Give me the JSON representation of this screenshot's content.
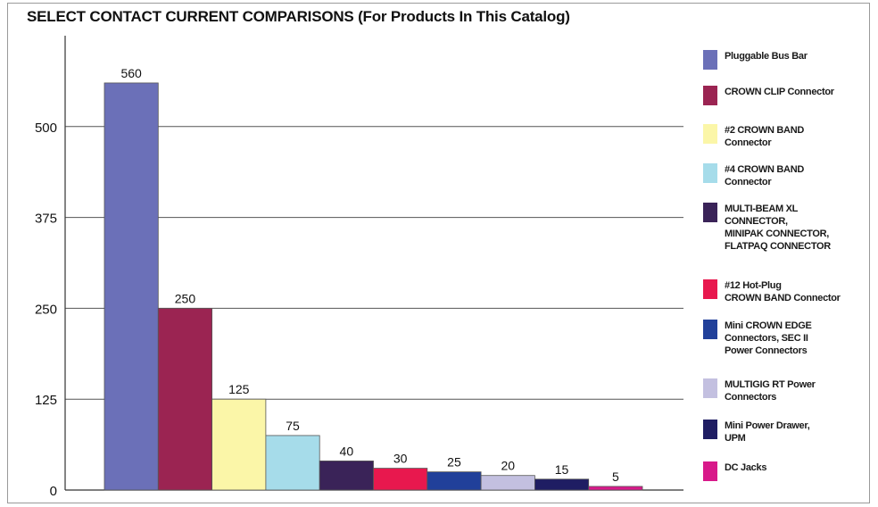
{
  "chart_data": {
    "type": "bar",
    "title": "SELECT CONTACT CURRENT COMPARISONS (For Products In This Catalog)",
    "ylim": [
      0,
      625
    ],
    "yticks": [
      0,
      125,
      250,
      375,
      500
    ],
    "grid": "horizontal",
    "legend_placement": "right",
    "series": [
      {
        "name": "Pluggable Bus Bar",
        "value": 560,
        "value_label": "560",
        "color": "#6b70b8"
      },
      {
        "name": "CROWN CLIP Connector",
        "value": 250,
        "value_label": "250",
        "color": "#9b2452"
      },
      {
        "name": "#2 CROWN BAND\nConnector",
        "value": 125,
        "value_label": "125",
        "color": "#fbf6a8"
      },
      {
        "name": "#4 CROWN BAND\nConnector",
        "value": 75,
        "value_label": "75",
        "color": "#a6dcea"
      },
      {
        "name": "MULTI-BEAM XL\nCONNECTOR,\nMINIPAK CONNECTOR,\nFLATPAQ CONNECTOR",
        "value": 40,
        "value_label": "40",
        "color": "#3a2358"
      },
      {
        "name": "#12 Hot-Plug\nCROWN BAND Connector",
        "value": 30,
        "value_label": "30",
        "color": "#e8184e"
      },
      {
        "name": "Mini CROWN EDGE\nConnectors, SEC II\nPower Connectors",
        "value": 25,
        "value_label": "25",
        "color": "#21409a"
      },
      {
        "name": "MULTIGIG RT Power\nConnectors",
        "value": 20,
        "value_label": "20",
        "color": "#c3c0e0"
      },
      {
        "name": "Mini Power Drawer,\nUPM",
        "value": 15,
        "value_label": "15",
        "color": "#1f1d63"
      },
      {
        "name": "DC Jacks",
        "value": 5,
        "value_label": "5",
        "color": "#d8198a"
      }
    ]
  }
}
